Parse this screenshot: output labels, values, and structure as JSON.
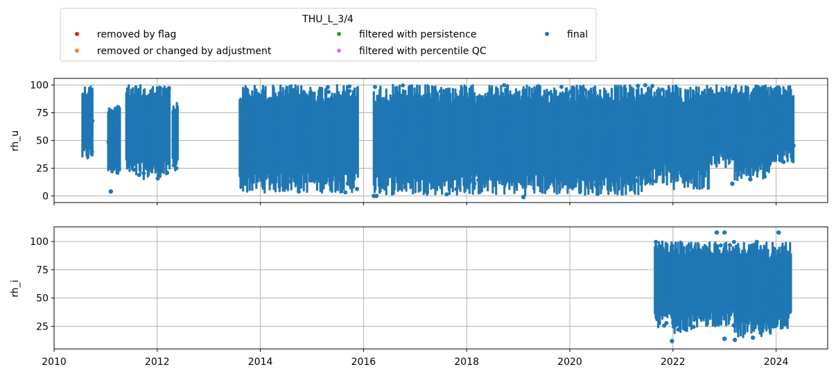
{
  "legend": {
    "title": "THU_L_3/4",
    "placement": "top-left, above plots",
    "entries": [
      {
        "label": "removed by flag",
        "color": "#d62728"
      },
      {
        "label": "filtered with persistence",
        "color": "#2ca02c"
      },
      {
        "label": "final",
        "color": "#1f77b4"
      },
      {
        "label": "removed or changed by adjustment",
        "color": "#ff7f0e"
      },
      {
        "label": "filtered with percentile QC",
        "color": "#e377c2"
      }
    ]
  },
  "chart_data": [
    {
      "type": "scatter",
      "title": "",
      "xlabel": "",
      "ylabel": "rh_u",
      "xlim": [
        2010.0,
        2025.0
      ],
      "ylim": [
        -6,
        106
      ],
      "yticks": [
        0,
        25,
        50,
        75,
        100
      ],
      "xticks": [
        "2010",
        "2012",
        "2014",
        "2016",
        "2018",
        "2020",
        "2022",
        "2024"
      ],
      "xtick_labels_shown": false,
      "grid": true,
      "series": [
        {
          "name": "final",
          "color": "#1f77b4",
          "bands": [
            {
              "x": [
                2010.55,
                2010.75
              ],
              "y": [
                31,
                100
              ]
            },
            {
              "x": [
                2011.05,
                2011.28
              ],
              "y": [
                20,
                84
              ]
            },
            {
              "x": [
                2011.4,
                2012.25
              ],
              "y": [
                15,
                100
              ]
            },
            {
              "x": [
                2012.3,
                2012.4
              ],
              "y": [
                22,
                84
              ]
            },
            {
              "x": [
                2013.6,
                2015.9
              ],
              "y": [
                3,
                100
              ]
            },
            {
              "x": [
                2016.2,
                2021.4
              ],
              "y": [
                1,
                100
              ]
            },
            {
              "x": [
                2021.4,
                2022.0
              ],
              "y": [
                10,
                100
              ]
            },
            {
              "x": [
                2022.0,
                2022.7
              ],
              "y": [
                6,
                100
              ]
            },
            {
              "x": [
                2022.7,
                2023.2
              ],
              "y": [
                25,
                100
              ]
            },
            {
              "x": [
                2023.2,
                2023.9
              ],
              "y": [
                14,
                100
              ]
            },
            {
              "x": [
                2023.9,
                2024.35
              ],
              "y": [
                30,
                100
              ]
            }
          ],
          "points": [
            {
              "x": 2011.1,
              "y": 4
            },
            {
              "x": 2016.2,
              "y": 0
            },
            {
              "x": 2016.25,
              "y": 0
            },
            {
              "x": 2019.1,
              "y": -1
            },
            {
              "x": 2023.15,
              "y": 11
            },
            {
              "x": 2023.5,
              "y": 15
            },
            {
              "x": 2024.1,
              "y": 32
            }
          ]
        }
      ]
    },
    {
      "type": "scatter",
      "title": "",
      "xlabel": "",
      "ylabel": "rh_i",
      "xlim": [
        2010.0,
        2025.0
      ],
      "ylim": [
        5,
        113
      ],
      "yticks": [
        25,
        50,
        75,
        100
      ],
      "xticks": [
        "2010",
        "2012",
        "2014",
        "2016",
        "2018",
        "2020",
        "2022",
        "2024"
      ],
      "xtick_labels_shown": true,
      "grid": true,
      "series": [
        {
          "name": "final",
          "color": "#1f77b4",
          "bands": [
            {
              "x": [
                2021.65,
                2022.0
              ],
              "y": [
                24,
                100
              ]
            },
            {
              "x": [
                2022.0,
                2022.5
              ],
              "y": [
                19,
                100
              ]
            },
            {
              "x": [
                2022.5,
                2023.2
              ],
              "y": [
                25,
                100
              ]
            },
            {
              "x": [
                2023.2,
                2023.9
              ],
              "y": [
                14,
                100
              ]
            },
            {
              "x": [
                2023.9,
                2024.3
              ],
              "y": [
                22,
                100
              ]
            }
          ],
          "points": [
            {
              "x": 2021.98,
              "y": 12
            },
            {
              "x": 2022.85,
              "y": 108
            },
            {
              "x": 2023.0,
              "y": 108
            },
            {
              "x": 2023.0,
              "y": 14
            },
            {
              "x": 2023.2,
              "y": 13
            },
            {
              "x": 2024.05,
              "y": 108
            },
            {
              "x": 2023.55,
              "y": 15
            },
            {
              "x": 2023.4,
              "y": 31
            },
            {
              "x": 2023.6,
              "y": 33
            }
          ]
        }
      ]
    }
  ]
}
